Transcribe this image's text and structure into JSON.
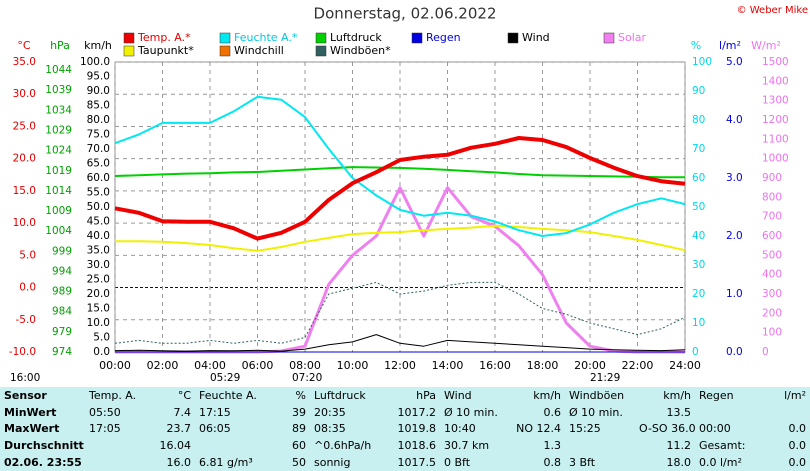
{
  "chart_data": {
    "type": "line",
    "title": "Donnerstag, 02.06.2022",
    "copyright": "© Weber Mike",
    "x": [
      0,
      1,
      2,
      3,
      4,
      5,
      6,
      7,
      8,
      9,
      10,
      11,
      12,
      13,
      14,
      15,
      16,
      17,
      18,
      19,
      20,
      21,
      22,
      23,
      24
    ],
    "xlim": [
      0,
      24
    ],
    "xticks": [
      {
        "value": 0,
        "label": "00:00"
      },
      {
        "value": 2,
        "label": "02:00"
      },
      {
        "value": 4,
        "label": "04:00"
      },
      {
        "value": 6,
        "label": "06:00"
      },
      {
        "value": 8,
        "label": "08:00"
      },
      {
        "value": 10,
        "label": "10:00"
      },
      {
        "value": 12,
        "label": "12:00"
      },
      {
        "value": 14,
        "label": "14:00"
      },
      {
        "value": 16,
        "label": "16:00"
      },
      {
        "value": 18,
        "label": "18:00"
      },
      {
        "value": 20,
        "label": "20:00"
      },
      {
        "value": 22,
        "label": "22:00"
      },
      {
        "value": 24,
        "label": "24:00"
      }
    ],
    "grid": true,
    "axes": [
      {
        "label": "°C",
        "color": "#e00000",
        "side": "left",
        "pos": 36,
        "lim": [
          -10,
          35
        ],
        "ticks": [
          {
            "value": -10,
            "label": "-10.0"
          },
          {
            "value": -5,
            "label": "-5.0"
          },
          {
            "value": 0,
            "label": "0.0"
          },
          {
            "value": 5,
            "label": "5.0"
          },
          {
            "value": 10,
            "label": "10.0"
          },
          {
            "value": 15,
            "label": "15.0"
          },
          {
            "value": 20,
            "label": "20.0"
          },
          {
            "value": 25,
            "label": "25.0"
          },
          {
            "value": 30,
            "label": "30.0"
          },
          {
            "value": 35,
            "label": "35.0"
          }
        ]
      },
      {
        "label": "hPa",
        "color": "#00a000",
        "side": "left",
        "pos": 72,
        "lim": [
          974,
          1046
        ],
        "ticks": [
          974,
          979,
          984,
          989,
          994,
          999,
          1004,
          1009,
          1014,
          1019,
          1024,
          1029,
          1034,
          1039,
          1044
        ]
      },
      {
        "label": "km/h",
        "color": "#000000",
        "side": "left",
        "pos": 110,
        "lim": [
          0,
          100
        ],
        "ticks": [
          {
            "value": 0,
            "label": "0.0"
          },
          {
            "value": 5,
            "label": "5.0"
          },
          {
            "value": 10,
            "label": "10.0"
          },
          {
            "value": 15,
            "label": "15.0"
          },
          {
            "value": 20,
            "label": "20.0"
          },
          {
            "value": 25,
            "label": "25.0"
          },
          {
            "value": 30,
            "label": "30.0"
          },
          {
            "value": 35,
            "label": "35.0"
          },
          {
            "value": 40,
            "label": "40.0"
          },
          {
            "value": 45,
            "label": "45.0"
          },
          {
            "value": 50,
            "label": "50.0"
          },
          {
            "value": 55,
            "label": "55.0"
          },
          {
            "value": 60,
            "label": "60.0"
          },
          {
            "value": 65,
            "label": "65.0"
          },
          {
            "value": 70,
            "label": "70.0"
          },
          {
            "value": 75,
            "label": "75.0"
          },
          {
            "value": 80,
            "label": "80.0"
          },
          {
            "value": 85,
            "label": "85.0"
          },
          {
            "value": 90,
            "label": "90.0"
          },
          {
            "value": 95,
            "label": "95.0"
          },
          {
            "value": 100,
            "label": "100.0"
          }
        ]
      },
      {
        "label": "%",
        "color": "#00d8e8",
        "side": "right",
        "pos": 692,
        "lim": [
          0,
          100
        ],
        "ticks": [
          0,
          10,
          20,
          30,
          40,
          50,
          60,
          70,
          80,
          90,
          100
        ]
      },
      {
        "label": "l/m²",
        "color": "#0000e0",
        "side": "right",
        "pos": 726,
        "lim": [
          0,
          5
        ],
        "ticks": [
          {
            "value": 0,
            "label": "0.0"
          },
          {
            "value": 1,
            "label": "1.0"
          },
          {
            "value": 2,
            "label": "2.0"
          },
          {
            "value": 3,
            "label": "3.0"
          },
          {
            "value": 4,
            "label": "4.0"
          },
          {
            "value": 5,
            "label": "5.0"
          }
        ]
      },
      {
        "label": "W/m²",
        "color": "#f070f0",
        "side": "right",
        "pos": 762,
        "lim": [
          0,
          1500
        ],
        "ticks": [
          0,
          100,
          200,
          300,
          400,
          500,
          600,
          700,
          800,
          900,
          1000,
          1100,
          1200,
          1300,
          1400,
          1500
        ]
      }
    ],
    "series": [
      {
        "name": "Temp. A.*",
        "color": "#ee0000",
        "axis": 0,
        "width": 4,
        "values": [
          12.3,
          11.6,
          10.3,
          10.2,
          10.2,
          9.2,
          7.6,
          8.5,
          10.2,
          13.6,
          16.2,
          17.9,
          19.8,
          20.3,
          20.6,
          21.7,
          22.3,
          23.2,
          22.9,
          21.8,
          20.1,
          18.6,
          17.3,
          16.5,
          16.1
        ]
      },
      {
        "name": "Feuchte A.*",
        "color": "#00e8f0",
        "axis": 3,
        "width": 2,
        "values": [
          72,
          75,
          79,
          79,
          79,
          83,
          88,
          87,
          81,
          70,
          60,
          54,
          49,
          47,
          48,
          47,
          45,
          42,
          40,
          41,
          44,
          48,
          51,
          53,
          51
        ]
      },
      {
        "name": "Luftdruck",
        "color": "#00d000",
        "axis": 1,
        "width": 2,
        "values": [
          1017.7,
          1017.9,
          1018.1,
          1018.3,
          1018.4,
          1018.6,
          1018.7,
          1019.0,
          1019.3,
          1019.6,
          1019.9,
          1019.8,
          1019.7,
          1019.5,
          1019.2,
          1018.9,
          1018.6,
          1018.2,
          1017.9,
          1017.8,
          1017.7,
          1017.6,
          1017.5,
          1017.4,
          1017.4
        ]
      },
      {
        "name": "Regen",
        "color": "#0000e0",
        "axis": 4,
        "width": 1,
        "values": [
          0,
          0,
          0,
          0,
          0,
          0,
          0,
          0,
          0,
          0,
          0,
          0,
          0,
          0,
          0,
          0,
          0,
          0,
          0,
          0,
          0,
          0,
          0,
          0,
          0
        ]
      },
      {
        "name": "Wind",
        "color": "#000000",
        "axis": 2,
        "width": 1,
        "values": [
          0.5,
          0.6,
          0.4,
          0.3,
          0.5,
          0.4,
          0.6,
          0.3,
          1.0,
          2.5,
          3.5,
          6.0,
          3.0,
          2.0,
          4.0,
          3.5,
          3.0,
          2.5,
          2.0,
          1.5,
          1.0,
          0.8,
          0.6,
          0.5,
          0.8
        ]
      },
      {
        "name": "Solar",
        "color": "#f080f0",
        "axis": 5,
        "width": 3,
        "values": [
          0,
          0,
          0,
          0,
          0,
          0,
          0,
          5,
          30,
          350,
          500,
          600,
          850,
          600,
          850,
          700,
          650,
          550,
          400,
          150,
          30,
          5,
          0,
          0,
          0
        ]
      },
      {
        "name": "Taupunkt*",
        "color": "#f0f000",
        "axis": 0,
        "width": 2,
        "values": [
          7.2,
          7.2,
          7.1,
          6.9,
          6.6,
          6.1,
          5.7,
          6.3,
          7.1,
          7.7,
          8.3,
          8.5,
          8.6,
          8.9,
          9.1,
          9.3,
          9.6,
          9.4,
          9.1,
          8.9,
          8.6,
          8.0,
          7.4,
          6.6,
          5.8
        ]
      },
      {
        "name": "Windchill",
        "color": "#f07000",
        "axis": 0,
        "width": 1,
        "values": [
          null,
          null,
          null,
          null,
          null,
          null,
          null,
          null,
          null,
          null,
          null,
          null,
          null,
          null,
          null,
          null,
          null,
          null,
          null,
          null,
          null,
          null,
          null,
          null,
          null
        ]
      },
      {
        "name": "Windböen*",
        "color": "#306060",
        "axis": 2,
        "width": 1,
        "dash": true,
        "values": [
          3,
          4,
          3,
          3,
          4,
          3,
          4,
          3,
          5,
          20,
          22,
          24,
          20,
          21,
          23,
          24,
          24,
          20,
          15,
          13,
          10,
          8,
          6,
          8,
          12
        ]
      }
    ],
    "sun": [
      "16:00",
      "05:29",
      "07:20",
      "21:29"
    ]
  },
  "table": {
    "header": [
      "Sensor",
      "Temp. A.",
      "°C",
      "Feuchte A.",
      "%",
      "Luftdruck",
      "hPa",
      "Wind",
      "km/h",
      "Windböen",
      "km/h",
      "Regen",
      "l/m²"
    ],
    "rows": [
      [
        "MinWert",
        "05:50",
        "7.4",
        "17:15",
        "39",
        "20:35",
        "1017.2",
        "Ø 10 min.",
        "0.6",
        "Ø 10 min.",
        "13.5",
        null,
        null
      ],
      [
        "MaxWert",
        "17:05",
        "23.7",
        "06:05",
        "89",
        "08:35",
        "1019.8",
        "10:40",
        "NO 12.4",
        "15:25",
        "O-SO 36.0",
        "00:00",
        "0.0"
      ],
      [
        "Durchschnitt",
        null,
        "16.04",
        null,
        "60",
        "^0.6hPa/h",
        "1018.6",
        "30.7 km",
        "1.3",
        null,
        "11.2",
        "Gesamt:",
        "0.0"
      ],
      [
        "02.06. 23:55",
        null,
        "16.0",
        "6.81 g/m³",
        "50",
        "sonnig",
        "1017.5",
        "0 Bft",
        "0.8",
        "3 Bft",
        "18.0",
        "0.0 l/m²",
        "0.0"
      ]
    ]
  }
}
